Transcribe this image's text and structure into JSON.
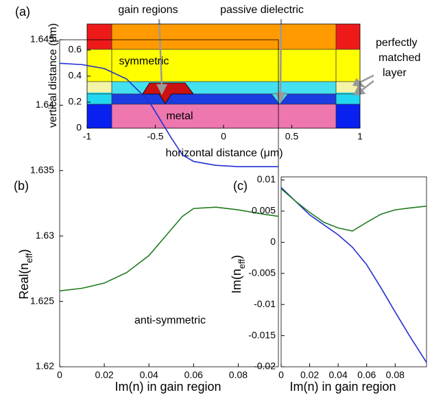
{
  "chart_data": [
    {
      "type": "schematic",
      "panel_label": "(a)",
      "xlabel": "horizontal distance (μm)",
      "ylabel": "vertical distance (μm)",
      "xlim": [
        -1,
        1
      ],
      "ylim": [
        0,
        0.8
      ],
      "xticks": [
        -1,
        -0.5,
        0,
        0.5,
        1
      ],
      "yticks": [
        0,
        0.2,
        0.4,
        0.6
      ],
      "annotations": [
        "gain regions",
        "passive dielectric",
        "metal",
        "perfectly",
        "matched",
        "layer"
      ]
    },
    {
      "type": "line",
      "panel_label": "(b)",
      "xlabel": "Im(n) in gain region",
      "ylabel_parts": [
        "Real(n",
        "eff",
        ")"
      ],
      "xlim": [
        0,
        0.098
      ],
      "ylim": [
        1.62,
        1.645
      ],
      "xticks": [
        0,
        0.02,
        0.04,
        0.06,
        0.08
      ],
      "yticks": [
        1.62,
        1.625,
        1.63,
        1.635,
        1.64,
        1.645
      ],
      "x": [
        0,
        0.01,
        0.02,
        0.03,
        0.04,
        0.05,
        0.055,
        0.06,
        0.07,
        0.08,
        0.09,
        0.098
      ],
      "series": [
        {
          "name": "symmetric",
          "color": "#1f2fd0",
          "values": [
            1.6432,
            1.6431,
            1.6428,
            1.642,
            1.6403,
            1.6375,
            1.6362,
            1.6357,
            1.6354,
            1.6353,
            1.6353,
            1.6353
          ]
        },
        {
          "name": "anti-symmetric",
          "color": "#1e7a1e",
          "values": [
            1.6258,
            1.626,
            1.6264,
            1.6272,
            1.6285,
            1.6305,
            1.6315,
            1.6321,
            1.6322,
            1.632,
            1.6317,
            1.6315
          ]
        }
      ]
    },
    {
      "type": "line",
      "panel_label": "(c)",
      "xlabel": "Im(n) in gain region",
      "ylabel_parts": [
        "Im(n",
        "eff",
        ")"
      ],
      "xlim": [
        0,
        0.102
      ],
      "ylim": [
        -0.02,
        0.0105
      ],
      "xticks": [
        0,
        0.02,
        0.04,
        0.06,
        0.08
      ],
      "yticks": [
        -0.02,
        -0.015,
        -0.01,
        -0.005,
        0,
        0.005,
        0.01
      ],
      "x": [
        0,
        0.01,
        0.02,
        0.03,
        0.04,
        0.05,
        0.06,
        0.07,
        0.08,
        0.09,
        0.102
      ],
      "series": [
        {
          "color": "#1f2fd0",
          "values": [
            0.0088,
            0.0066,
            0.0044,
            0.0028,
            0.0012,
            -0.0008,
            -0.0036,
            -0.0073,
            -0.0112,
            -0.015,
            -0.0193
          ]
        },
        {
          "color": "#1e7a1e",
          "values": [
            0.0086,
            0.0066,
            0.0048,
            0.0032,
            0.0023,
            0.0018,
            0.0032,
            0.0045,
            0.0052,
            0.0055,
            0.0058
          ]
        }
      ]
    }
  ]
}
